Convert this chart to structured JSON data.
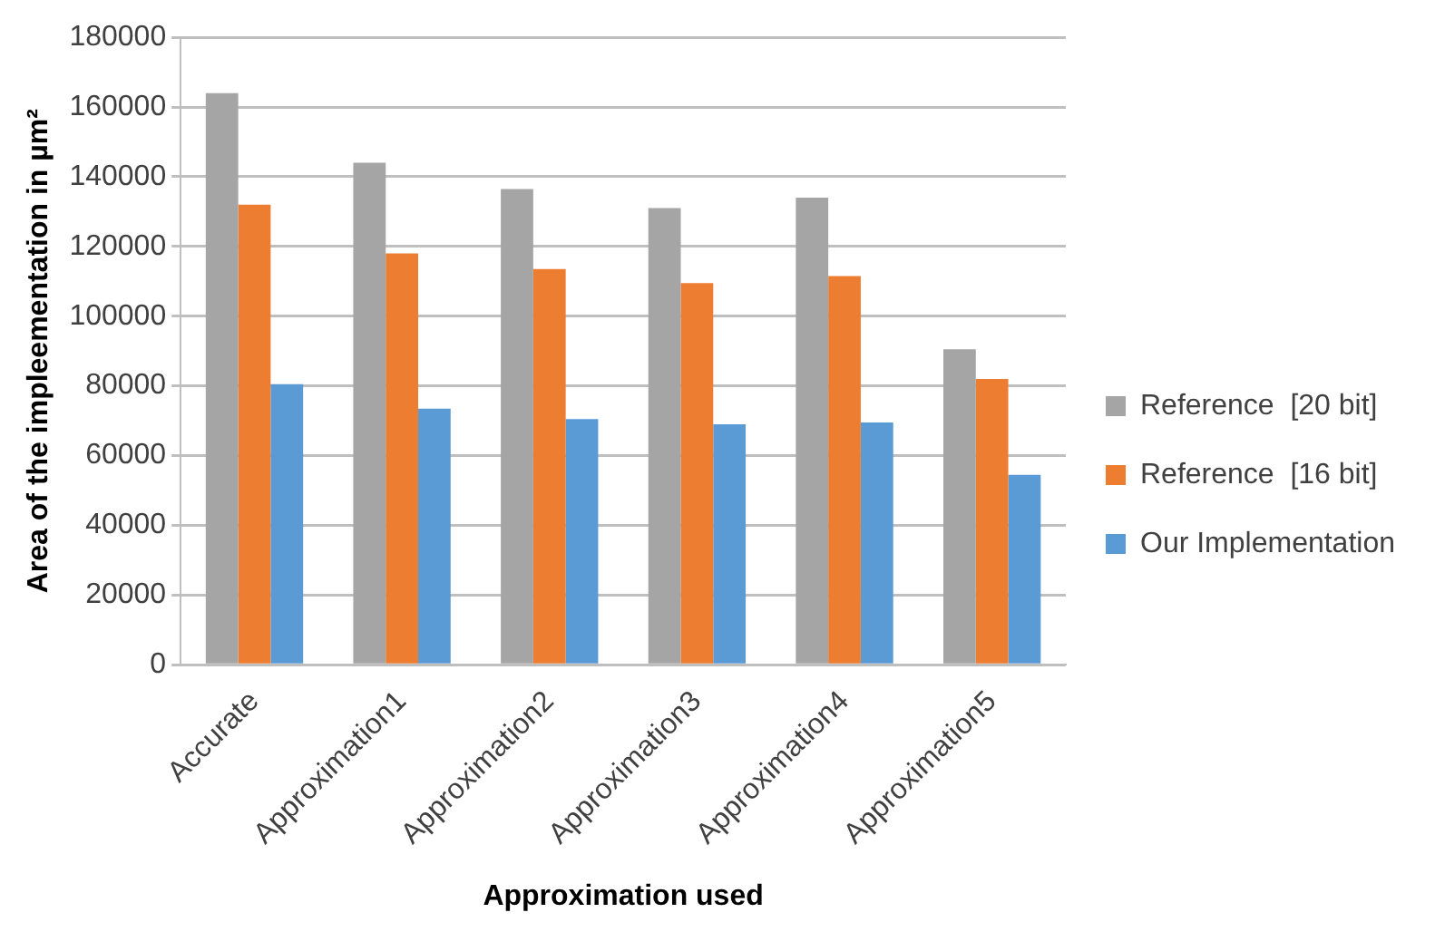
{
  "chart_data": {
    "type": "bar",
    "xlabel": "Approximation used",
    "ylabel": "Area of the impleementation in µm²",
    "categories": [
      "Accurate",
      "Approximation1",
      "Approximation2",
      "Approximation3",
      "Approximation4",
      "Approximation5"
    ],
    "series": [
      {
        "name": "Reference  [20 bit]",
        "color": "#a5a5a5",
        "values": [
          164000,
          144000,
          136500,
          131000,
          134000,
          90500
        ]
      },
      {
        "name": "Reference  [16 bit]",
        "color": "#ed7d31",
        "values": [
          132000,
          118000,
          113500,
          109500,
          111500,
          82000
        ]
      },
      {
        "name": "Our Implementation",
        "color": "#5b9bd5",
        "values": [
          80500,
          73500,
          70500,
          69000,
          69500,
          54500
        ]
      }
    ],
    "ylim": [
      0,
      180000
    ],
    "yticks": [
      0,
      20000,
      40000,
      60000,
      80000,
      100000,
      120000,
      140000,
      160000,
      180000
    ],
    "grid": "y",
    "legend": "right"
  }
}
